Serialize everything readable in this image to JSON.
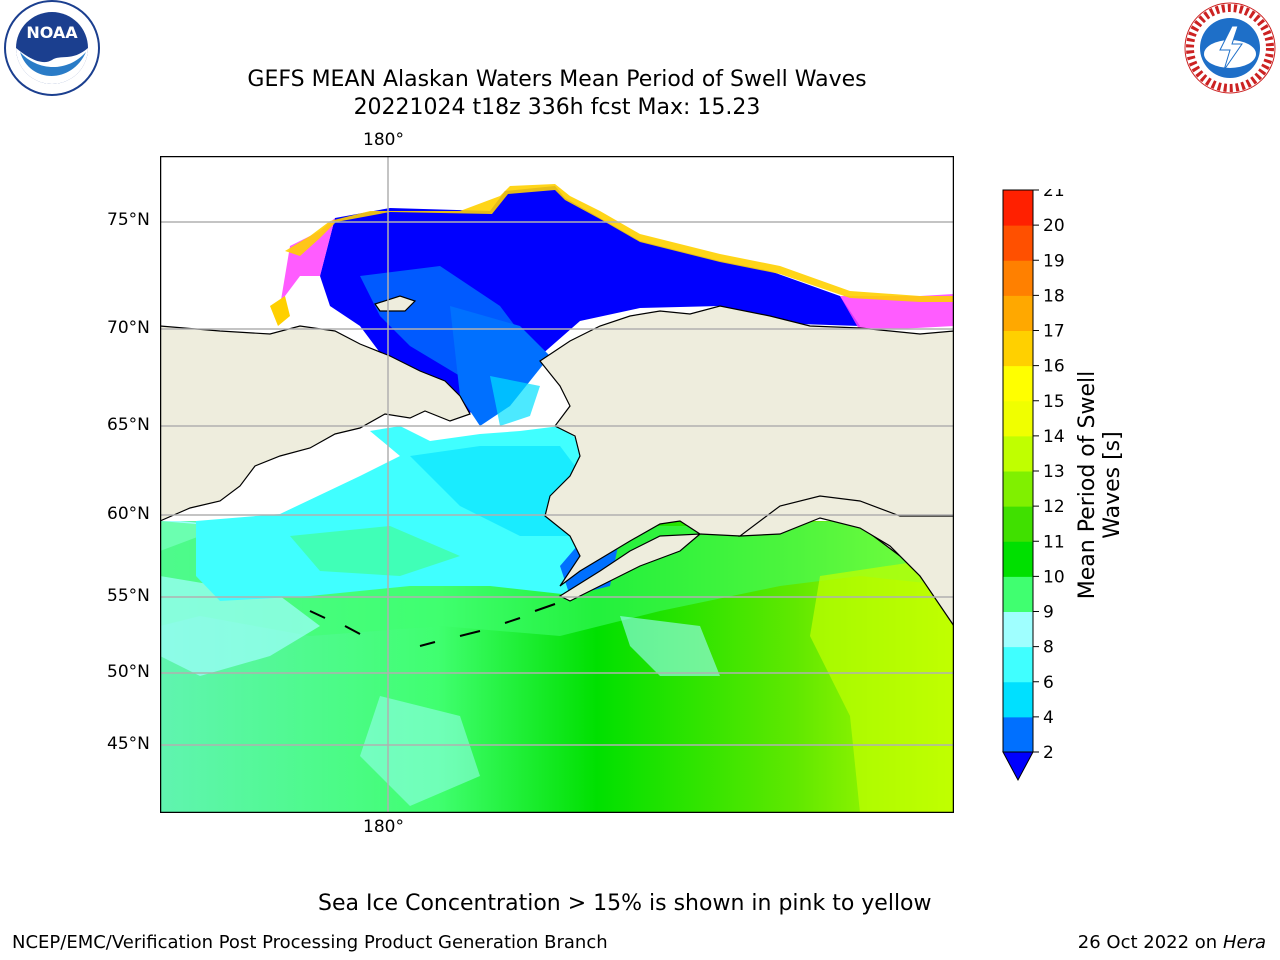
{
  "title": {
    "line1": "GEFS MEAN Alaskan Waters Mean Period of Swell Waves",
    "line2": "20221024 t18z 336h fcst   Max: 15.23"
  },
  "map": {
    "top_lon_label": "180°",
    "bottom_lon_label": "180°",
    "lat_labels": [
      "75°N",
      "70°N",
      "65°N",
      "60°N",
      "55°N",
      "50°N",
      "45°N"
    ]
  },
  "colorbar": {
    "label": "Mean Period of Swell Waves [s]",
    "ticks": [
      "21",
      "20",
      "19",
      "18",
      "17",
      "16",
      "15",
      "14",
      "13",
      "12",
      "11",
      "10",
      "9",
      "8",
      "6",
      "4",
      "2"
    ],
    "colors": [
      "#0000ff",
      "#0070ff",
      "#00e0ff",
      "#40ffff",
      "#9fffff",
      "#40ff70",
      "#00e000",
      "#40e000",
      "#80f000",
      "#c0ff00",
      "#f0ff00",
      "#ffff00",
      "#ffd000",
      "#ffa800",
      "#ff8000",
      "#ff5000",
      "#ff2000",
      "#ff0000"
    ]
  },
  "ice_note": "Sea Ice Concentration > 15% is shown in pink to yellow",
  "footer": {
    "left": "NCEP/EMC/Verification Post Processing Product Generation Branch",
    "date": "26 Oct 2022 on ",
    "machine": "Hera"
  },
  "logos": {
    "noaa": "NOAA",
    "nws": "NATIONAL WEATHER SERVICE"
  }
}
